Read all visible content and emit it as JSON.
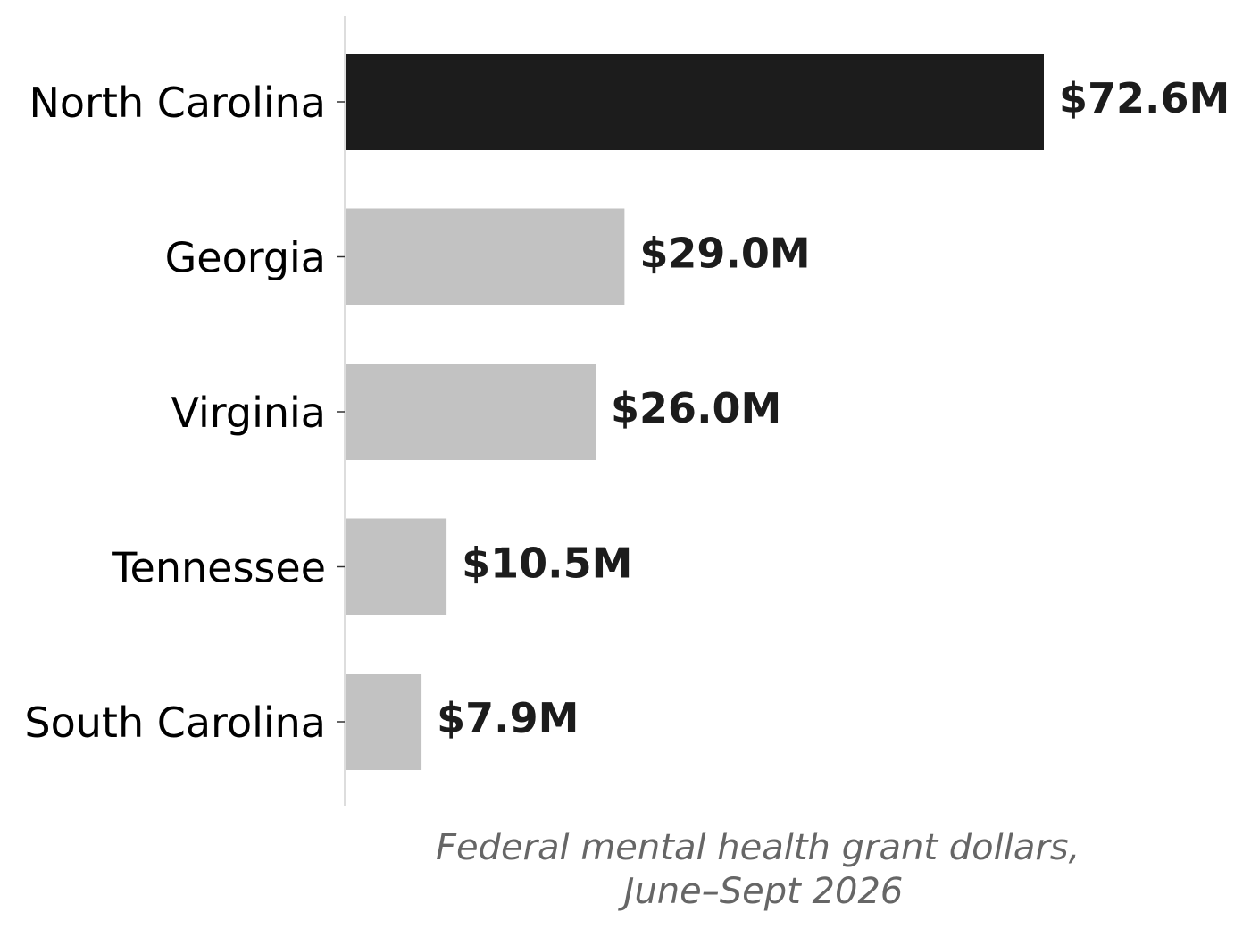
{
  "chart_data": {
    "type": "bar",
    "orientation": "horizontal",
    "categories": [
      "North Carolina",
      "Georgia",
      "Virginia",
      "Tennessee",
      "South Carolina"
    ],
    "values": [
      72.6,
      29.0,
      26.0,
      10.5,
      7.9
    ],
    "value_labels": [
      "$72.6M",
      "$29.0M",
      "$26.0M",
      "$10.5M",
      "$7.9M"
    ],
    "xlabel_lines": [
      "Federal mental health grant dollars,",
      "June–Sept 2026"
    ],
    "xlim": [
      0,
      72.6
    ],
    "grid": false,
    "highlight_category": "North Carolina",
    "colors": {
      "highlight": "#1c1c1c",
      "default": "#c2c2c2",
      "axis": "#dddddd",
      "tick": "#333333",
      "value_text": "#1c1c1c",
      "xlabel_text": "#666666"
    }
  }
}
